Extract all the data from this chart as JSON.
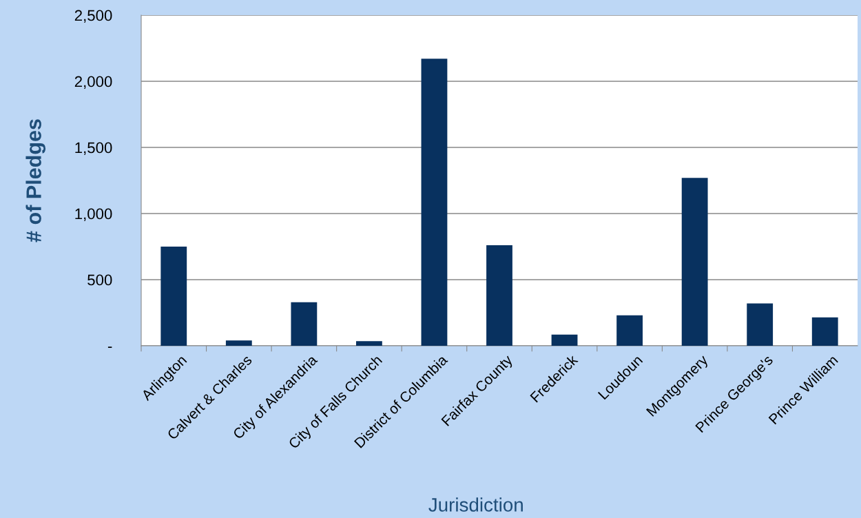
{
  "chart_data": {
    "type": "bar",
    "xlabel": "Jurisdiction",
    "ylabel": "# of Pledges",
    "categories": [
      "Arlington",
      "Calvert & Charles",
      "City of Alexandria",
      "City of Falls Church",
      "District of Columbia",
      "Fairfax County",
      "Frederick",
      "Loudoun",
      "Montgomery",
      "Prince George's",
      "Prince William"
    ],
    "values": [
      750,
      40,
      330,
      35,
      2170,
      760,
      85,
      230,
      1270,
      320,
      215
    ],
    "color": "#08315f",
    "ylim": [
      0,
      2500
    ],
    "yticks": [
      {
        "value": 0,
        "label": "-"
      },
      {
        "value": 500,
        "label": "500"
      },
      {
        "value": 1000,
        "label": "1,000"
      },
      {
        "value": 1500,
        "label": "1,500"
      },
      {
        "value": 2000,
        "label": "2,000"
      },
      {
        "value": 2500,
        "label": "2,500"
      }
    ],
    "grid": "y",
    "legend": false
  }
}
